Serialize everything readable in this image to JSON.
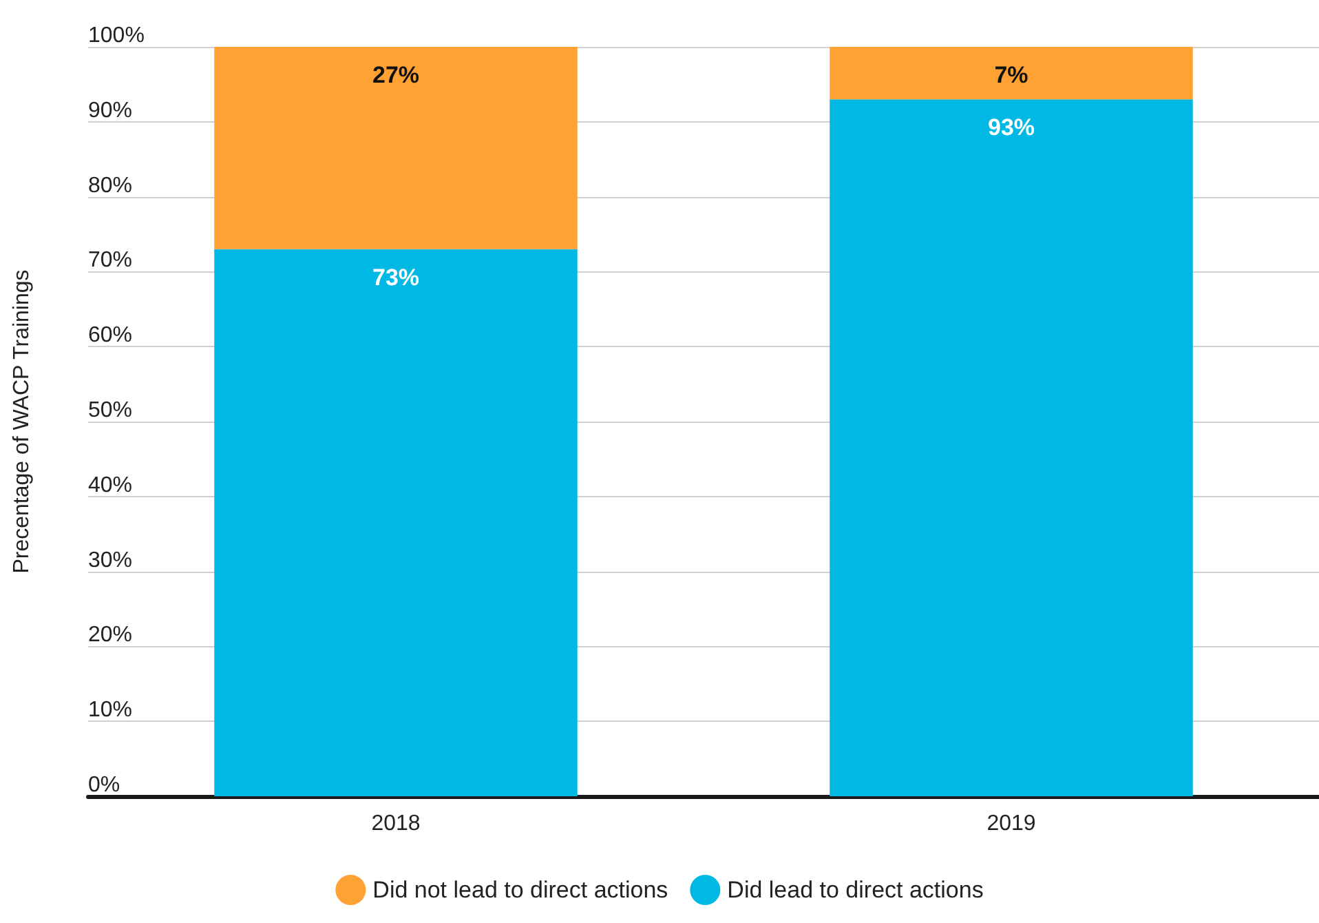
{
  "chart_data": {
    "type": "bar",
    "stacked": true,
    "ylabel": "Precentage of WACP Trainings",
    "categories": [
      "2018",
      "2019"
    ],
    "series": [
      {
        "name": "Did lead to direct actions",
        "color": "#00b8e4",
        "values": [
          73,
          93
        ],
        "value_labels": [
          "73%",
          "93%"
        ]
      },
      {
        "name": "Did not lead to direct actions",
        "color": "#ffa133",
        "values": [
          27,
          7
        ],
        "value_labels": [
          "27%",
          "7%"
        ]
      }
    ],
    "ylim": [
      0,
      100
    ],
    "yticks": [
      {
        "value": 0,
        "label": "0%"
      },
      {
        "value": 10,
        "label": "10%"
      },
      {
        "value": 20,
        "label": "20%"
      },
      {
        "value": 30,
        "label": "30%"
      },
      {
        "value": 40,
        "label": "40%"
      },
      {
        "value": 50,
        "label": "50%"
      },
      {
        "value": 60,
        "label": "60%"
      },
      {
        "value": 70,
        "label": "70%"
      },
      {
        "value": 80,
        "label": "80%"
      },
      {
        "value": 90,
        "label": "90%"
      },
      {
        "value": 100,
        "label": "100%"
      }
    ],
    "grid": "y",
    "legend": "bottom"
  }
}
